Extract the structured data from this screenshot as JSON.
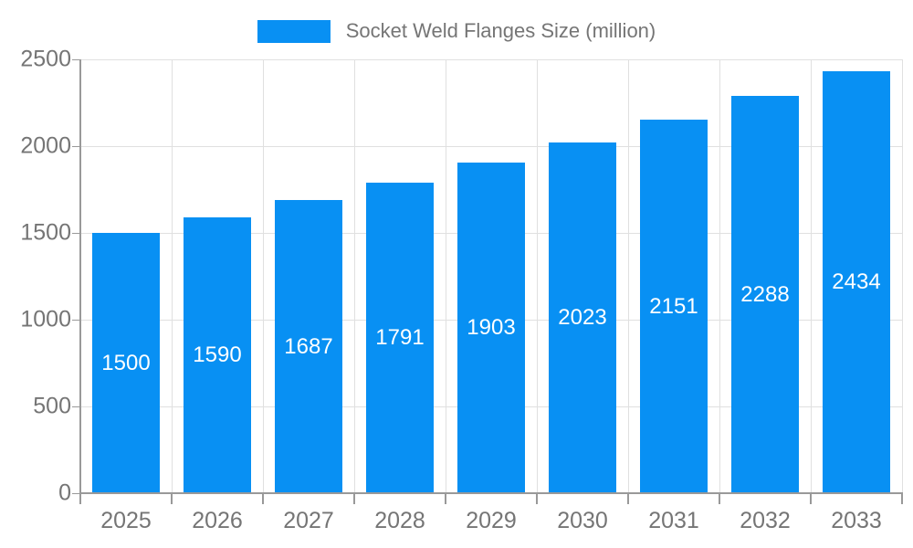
{
  "chart_data": {
    "type": "bar",
    "title": "Socket Weld Flanges Size (million)",
    "legend": {
      "label": "Socket Weld Flanges Size (million)",
      "position": "top-center"
    },
    "categories": [
      "2025",
      "2026",
      "2027",
      "2028",
      "2029",
      "2030",
      "2031",
      "2032",
      "2033"
    ],
    "series": [
      {
        "name": "Socket Weld Flanges Size (million)",
        "values": [
          1500,
          1590,
          1687,
          1791,
          1903,
          2023,
          2151,
          2288,
          2434
        ]
      }
    ],
    "xlabel": "",
    "ylabel": "",
    "ylim": [
      0,
      2500
    ],
    "yticks": [
      0,
      500,
      1000,
      1500,
      2000,
      2500
    ],
    "grid": "on",
    "value_labels": "inside-center",
    "colors": {
      "bar": "#0890f3",
      "bar_value_text": "#ffffff",
      "axis_text": "#757575",
      "axis_line": "#999999",
      "gridline": "#e0e0e0"
    }
  }
}
